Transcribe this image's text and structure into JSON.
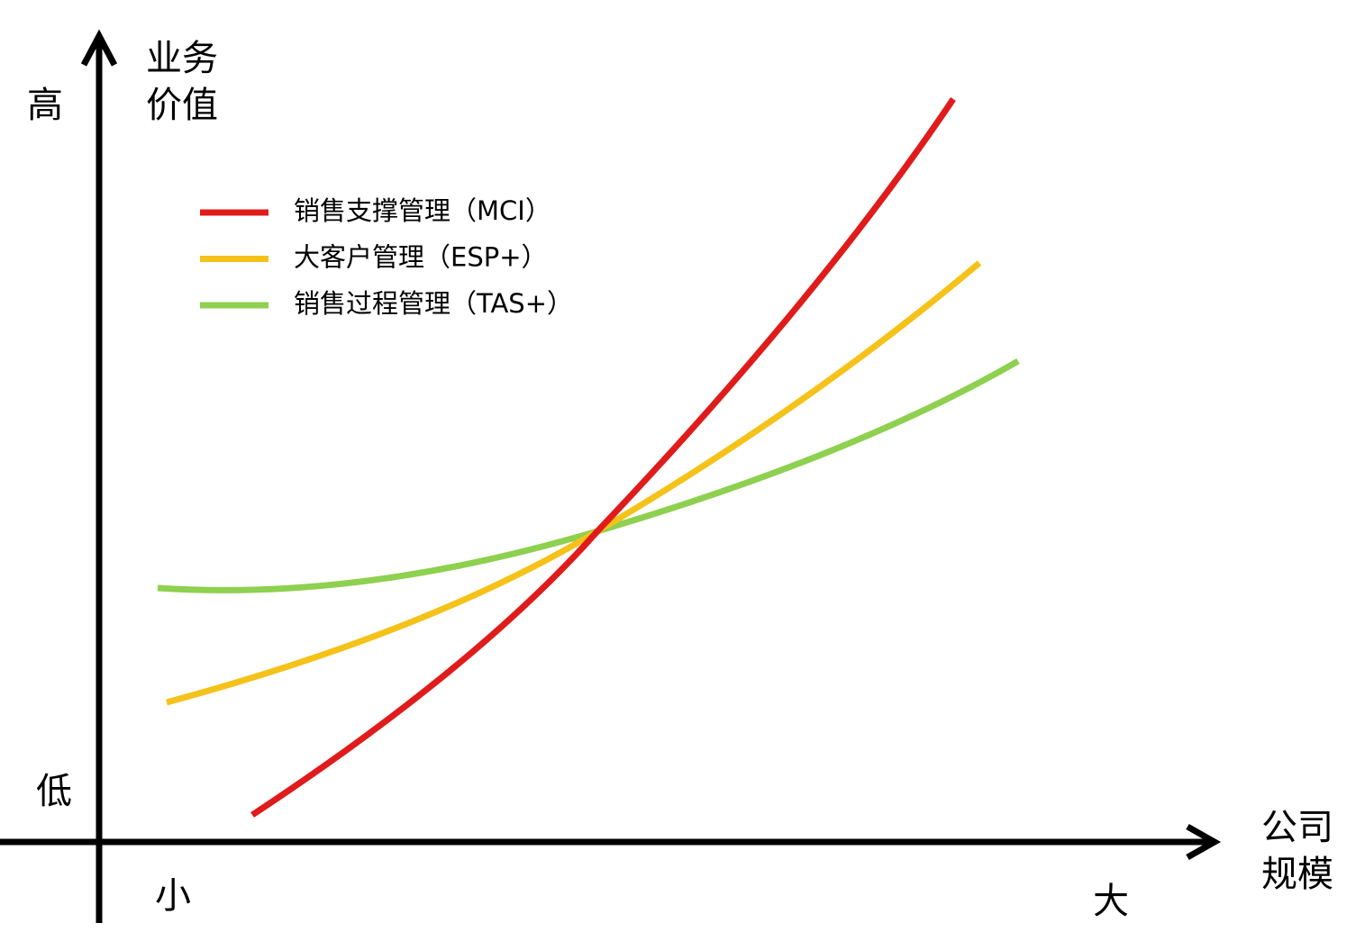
{
  "y_axis": {
    "label": [
      "业务",
      "价值"
    ],
    "high": "高",
    "low": "低"
  },
  "x_axis": {
    "label": [
      "公司",
      "规模"
    ],
    "small": "小",
    "large": "大"
  },
  "legend": [
    {
      "label": "销售支撑管理（MCI）",
      "color": "#e01b1b"
    },
    {
      "label": "大客户管理（ESP+）",
      "color": "#f5c21a"
    },
    {
      "label": "销售过程管理（TAS+）",
      "color": "#8ed04f"
    }
  ]
}
